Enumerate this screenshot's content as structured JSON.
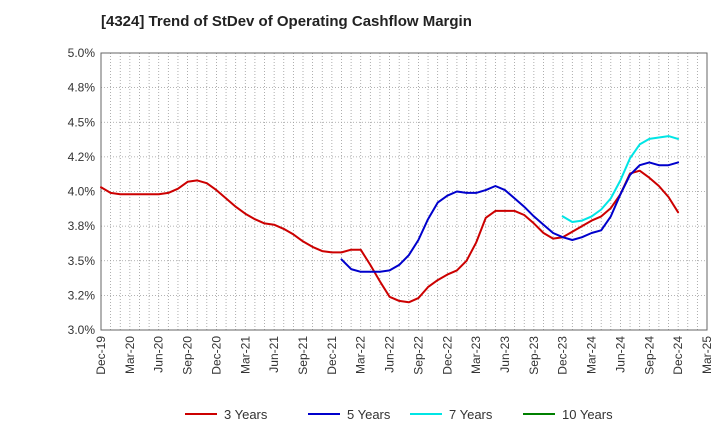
{
  "chart_data": {
    "type": "line",
    "title": "[4324]  Trend of StDev of Operating Cashflow Margin",
    "xlabel": "",
    "ylabel": "",
    "ylim": [
      3.0,
      5.0
    ],
    "y_ticks": [
      "3.0%",
      "3.2%",
      "3.5%",
      "3.8%",
      "4.0%",
      "4.2%",
      "4.5%",
      "4.8%",
      "5.0%"
    ],
    "x_ticks": [
      "Dec-19",
      "Mar-20",
      "Jun-20",
      "Sep-20",
      "Dec-20",
      "Mar-21",
      "Jun-21",
      "Sep-21",
      "Dec-21",
      "Mar-22",
      "Jun-22",
      "Sep-22",
      "Dec-22",
      "Mar-23",
      "Jun-23",
      "Sep-23",
      "Dec-23",
      "Mar-24",
      "Jun-24",
      "Sep-24",
      "Dec-24",
      "Mar-25"
    ],
    "grid": true,
    "legend_position": "bottom",
    "x_months": [
      "2019-12",
      "2020-01",
      "2020-02",
      "2020-03",
      "2020-04",
      "2020-05",
      "2020-06",
      "2020-07",
      "2020-08",
      "2020-09",
      "2020-10",
      "2020-11",
      "2020-12",
      "2021-01",
      "2021-02",
      "2021-03",
      "2021-04",
      "2021-05",
      "2021-06",
      "2021-07",
      "2021-08",
      "2021-09",
      "2021-10",
      "2021-11",
      "2021-12",
      "2022-01",
      "2022-02",
      "2022-03",
      "2022-04",
      "2022-05",
      "2022-06",
      "2022-07",
      "2022-08",
      "2022-09",
      "2022-10",
      "2022-11",
      "2022-12",
      "2023-01",
      "2023-02",
      "2023-03",
      "2023-04",
      "2023-05",
      "2023-06",
      "2023-07",
      "2023-08",
      "2023-09",
      "2023-10",
      "2023-11",
      "2023-12",
      "2024-01",
      "2024-02",
      "2024-03",
      "2024-04",
      "2024-05",
      "2024-06",
      "2024-07",
      "2024-08",
      "2024-09",
      "2024-10",
      "2024-11",
      "2024-12"
    ],
    "series": [
      {
        "name": "3 Years",
        "color": "#cc0000",
        "values": [
          4.03,
          3.99,
          3.98,
          3.98,
          3.98,
          3.98,
          3.98,
          3.99,
          4.02,
          4.07,
          4.08,
          4.06,
          4.01,
          3.95,
          3.89,
          3.84,
          3.8,
          3.77,
          3.76,
          3.73,
          3.69,
          3.64,
          3.6,
          3.57,
          3.56,
          3.56,
          3.58,
          3.58,
          3.47,
          3.35,
          3.24,
          3.21,
          3.2,
          3.23,
          3.31,
          3.36,
          3.4,
          3.43,
          3.5,
          3.63,
          3.81,
          3.86,
          3.86,
          3.86,
          3.83,
          3.77,
          3.7,
          3.66,
          3.67,
          3.71,
          3.75,
          3.79,
          3.82,
          3.88,
          3.98,
          4.13,
          4.15,
          4.1,
          4.04,
          3.96,
          3.85
        ]
      },
      {
        "name": "5 Years",
        "color": "#0000cc",
        "values": [
          null,
          null,
          null,
          null,
          null,
          null,
          null,
          null,
          null,
          null,
          null,
          null,
          null,
          null,
          null,
          null,
          null,
          null,
          null,
          null,
          null,
          null,
          null,
          null,
          null,
          3.51,
          3.44,
          3.42,
          3.42,
          3.42,
          3.43,
          3.47,
          3.54,
          3.65,
          3.8,
          3.92,
          3.97,
          4.0,
          3.99,
          3.99,
          4.01,
          4.04,
          4.01,
          3.95,
          3.89,
          3.82,
          3.76,
          3.7,
          3.67,
          3.65,
          3.67,
          3.7,
          3.72,
          3.82,
          3.98,
          4.12,
          4.19,
          4.21,
          4.19,
          4.19,
          4.21
        ]
      },
      {
        "name": "7 Years",
        "color": "#00e5e5",
        "values": [
          null,
          null,
          null,
          null,
          null,
          null,
          null,
          null,
          null,
          null,
          null,
          null,
          null,
          null,
          null,
          null,
          null,
          null,
          null,
          null,
          null,
          null,
          null,
          null,
          null,
          null,
          null,
          null,
          null,
          null,
          null,
          null,
          null,
          null,
          null,
          null,
          null,
          null,
          null,
          null,
          null,
          null,
          null,
          null,
          null,
          null,
          null,
          null,
          3.82,
          3.78,
          3.79,
          3.82,
          3.87,
          3.95,
          4.08,
          4.24,
          4.34,
          4.38,
          4.39,
          4.4,
          4.38
        ]
      },
      {
        "name": "10 Years",
        "color": "#008000",
        "values": []
      }
    ]
  }
}
